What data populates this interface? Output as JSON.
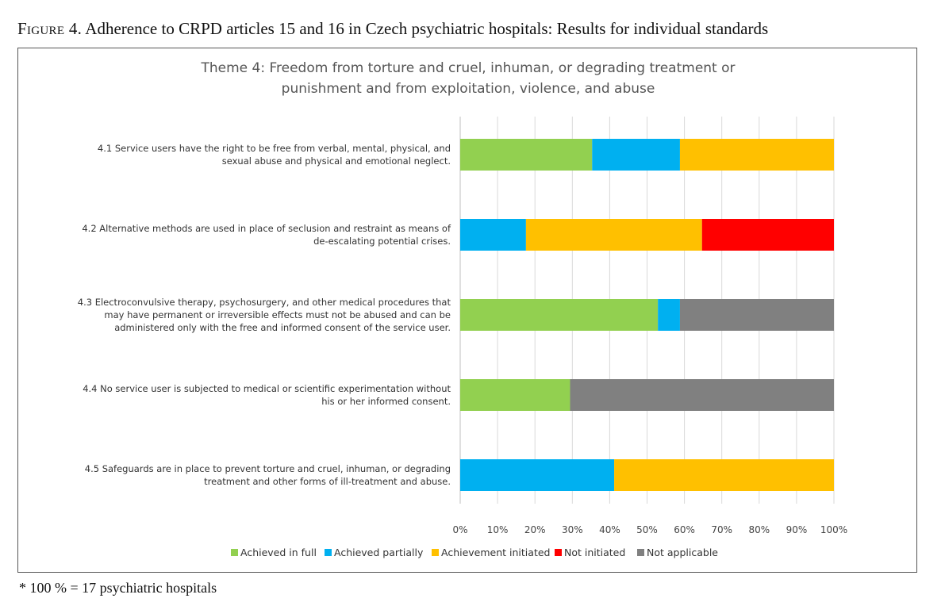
{
  "figure": {
    "label": "Figure 4.",
    "caption": " Adherence to CRPD articles 15 and 16 in Czech psychiatric hospitals: Results for individual standards"
  },
  "footnote": "* 100 % = 17 psychiatric hospitals",
  "chart_data": {
    "type": "bar",
    "orientation": "horizontal",
    "stacked": "percent",
    "title_lines": [
      "Theme 4: Freedom from torture and cruel, inhuman, or degrading treatment or",
      "punishment and from exploitation, violence, and abuse"
    ],
    "categories": [
      [
        "4.1 Service users have the right to be free from verbal, mental, physical, and",
        "sexual abuse and physical and emotional neglect."
      ],
      [
        "4.2 Alternative methods are used in place of seclusion and restraint as means of",
        "de-escalating potential crises."
      ],
      [
        "4.3 Electroconvulsive therapy, psychosurgery, and other medical procedures that",
        "may have permanent or irreversible effects must not be abused and can be",
        "administered only with the free and informed consent of the service user."
      ],
      [
        "4.4 No service user is subjected to medical or scientific experimentation without",
        "his or her informed consent."
      ],
      [
        "4.5 Safeguards are in place to prevent torture and cruel, inhuman, or degrading",
        "treatment and other forms of ill-treatment and abuse."
      ]
    ],
    "series": [
      {
        "name": "Achieved in full",
        "color": "#92D050",
        "values": [
          35.3,
          0,
          52.9,
          29.4,
          0
        ]
      },
      {
        "name": "Achieved partially",
        "color": "#00B0F0",
        "values": [
          23.5,
          17.6,
          5.9,
          0,
          41.2
        ]
      },
      {
        "name": "Achievement initiated",
        "color": "#FFC000",
        "values": [
          41.2,
          47.1,
          0,
          0,
          58.8
        ]
      },
      {
        "name": "Not initiated",
        "color": "#FF0000",
        "values": [
          0,
          35.3,
          0,
          0,
          0
        ]
      },
      {
        "name": "Not applicable",
        "color": "#808080",
        "values": [
          0,
          0,
          41.2,
          70.6,
          0
        ]
      }
    ],
    "xlim": [
      0,
      100
    ],
    "x_ticks": [
      "0%",
      "10%",
      "20%",
      "30%",
      "40%",
      "50%",
      "60%",
      "70%",
      "80%",
      "90%",
      "100%"
    ],
    "grid": "vertical",
    "legend_position": "bottom"
  }
}
